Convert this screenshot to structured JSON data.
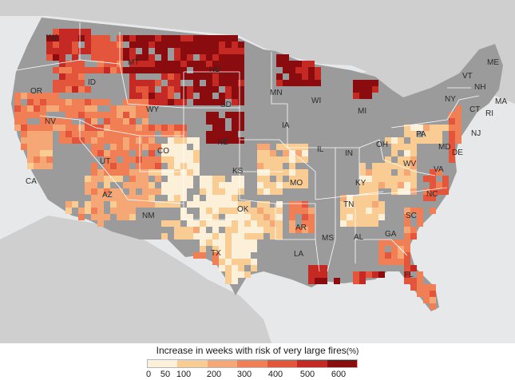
{
  "map": {
    "state_labels": [
      "WA",
      "OR",
      "CA",
      "ID",
      "NV",
      "MT",
      "WY",
      "UT",
      "AZ",
      "CO",
      "NM",
      "ND",
      "SD",
      "NE",
      "KS",
      "OK",
      "TX",
      "MN",
      "IA",
      "MO",
      "AR",
      "LA",
      "WI",
      "IL",
      "MI",
      "IN",
      "OH",
      "KY",
      "TN",
      "MS",
      "AL",
      "GA",
      "FL",
      "SC",
      "NC",
      "VA",
      "WV",
      "PA",
      "NY",
      "MD",
      "DE",
      "NJ",
      "CT",
      "RI",
      "MA",
      "VT",
      "NH",
      "ME"
    ],
    "colors": {
      "background": "#e6e8ea",
      "land": "#c9c9c9",
      "no_data": "#9b9b9b",
      "state_border": "#ffffff",
      "water": "#e6e8ea"
    }
  },
  "legend": {
    "title": "Increase in weeks with risk of very large fires",
    "unit": "(%)",
    "ticks": [
      "0",
      "50",
      "100",
      "200",
      "300",
      "400",
      "500",
      "600"
    ],
    "colors": [
      "#fdf0d8",
      "#f9cc94",
      "#f6a776",
      "#f07f55",
      "#e3563c",
      "#c42a23",
      "#8a0c0f"
    ]
  }
}
